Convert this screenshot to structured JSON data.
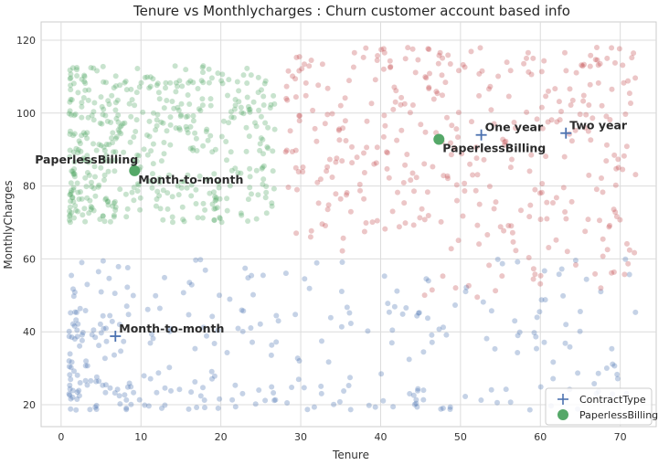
{
  "chart_data": {
    "type": "scatter",
    "title": "Tenure vs Monthlycharges : Churn customer account based info",
    "xlabel": "Tenure",
    "ylabel": "MonthlyCharges",
    "xlim": [
      -2.5,
      74.5
    ],
    "ylim": [
      14,
      125
    ],
    "xticks": [
      0,
      10,
      20,
      30,
      40,
      50,
      60,
      70
    ],
    "yticks": [
      20,
      40,
      60,
      80,
      100,
      120
    ],
    "grid": true,
    "legend_position": "bottom-right",
    "legend": [
      {
        "label": "ContractType",
        "marker": "plus",
        "color": "#4c72b0"
      },
      {
        "label": "PaperlessBilling",
        "marker": "circle",
        "color": "#55a868"
      }
    ],
    "clusters": [
      {
        "color": "#4c72b0",
        "x_range": [
          1,
          72
        ],
        "y_range": [
          18.5,
          60
        ],
        "n": 320
      },
      {
        "color": "#55a868",
        "x_range": [
          1,
          27
        ],
        "y_range": [
          70,
          113
        ],
        "n": 480
      },
      {
        "color": "#c44e52",
        "x_range": [
          28,
          72
        ],
        "y_range": [
          47,
          118
        ],
        "n": 380
      }
    ],
    "centroids": [
      {
        "marker": "plus",
        "color": "#4c72b0",
        "x": 6.8,
        "y": 38.8,
        "label": "Month-to-month"
      },
      {
        "marker": "plus",
        "color": "#4c72b0",
        "x": 52.6,
        "y": 94,
        "label": "One year"
      },
      {
        "marker": "plus",
        "color": "#4c72b0",
        "x": 63.2,
        "y": 94.5,
        "label": "Two year"
      },
      {
        "marker": "circle",
        "color": "#55a868",
        "x": 9.2,
        "y": 84.2,
        "label": "PaperlessBilling"
      },
      {
        "marker": "circle",
        "color": "#55a868",
        "x": 47.3,
        "y": 92.8,
        "label": "PaperlessBilling"
      }
    ],
    "annotations": [
      {
        "text": "PaperlessBilling",
        "x": 9.2,
        "y": 84.2,
        "anchor": "right-above"
      },
      {
        "text": "Month-to-month",
        "x": 9.2,
        "y": 84.2,
        "anchor": "right-below"
      },
      {
        "text": "Month-to-month",
        "x": 6.8,
        "y": 38.8,
        "anchor": "right-above"
      },
      {
        "text": "One year",
        "x": 52.6,
        "y": 94,
        "anchor": "right-above"
      },
      {
        "text": "PaperlessBilling",
        "x": 47.3,
        "y": 92.8,
        "anchor": "right-below"
      },
      {
        "text": "Two year",
        "x": 63.2,
        "y": 94.5,
        "anchor": "right-above"
      }
    ]
  }
}
